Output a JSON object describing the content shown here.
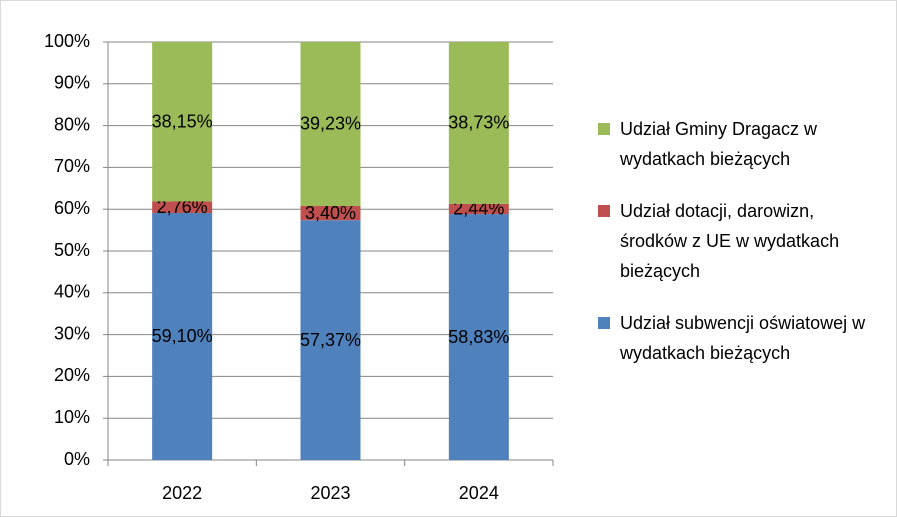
{
  "chart_data": {
    "type": "stacked_bar",
    "categories": [
      "2022",
      "2023",
      "2024"
    ],
    "series": [
      {
        "name": "Udział subwencji oświatowej w wydatkach bieżących",
        "color": "#4f81bd",
        "values": [
          59.1,
          57.37,
          58.83
        ],
        "value_labels": [
          "59,10%",
          "57,37%",
          "58,83%"
        ]
      },
      {
        "name": "Udział dotacji, darowizn, środków z UE w wydatkach bieżących",
        "color": "#c0504d",
        "values": [
          2.76,
          3.4,
          2.44
        ],
        "value_labels": [
          "2,76%",
          "3,40%",
          "2,44%"
        ]
      },
      {
        "name": "Udział Gminy Dragacz w wydatkach bieżących",
        "color": "#9bbb59",
        "values": [
          38.15,
          39.23,
          38.73
        ],
        "value_labels": [
          "38,15%",
          "39,23%",
          "38,73%"
        ]
      }
    ],
    "ylim": [
      0,
      100
    ],
    "yticks": [
      {
        "value": 0,
        "label": "0%"
      },
      {
        "value": 10,
        "label": "10%"
      },
      {
        "value": 20,
        "label": "20%"
      },
      {
        "value": 30,
        "label": "30%"
      },
      {
        "value": 40,
        "label": "40%"
      },
      {
        "value": 50,
        "label": "50%"
      },
      {
        "value": 60,
        "label": "60%"
      },
      {
        "value": 70,
        "label": "70%"
      },
      {
        "value": 80,
        "label": "80%"
      },
      {
        "value": 90,
        "label": "90%"
      },
      {
        "value": 100,
        "label": "100%"
      }
    ],
    "grid": true,
    "legend": "right"
  }
}
